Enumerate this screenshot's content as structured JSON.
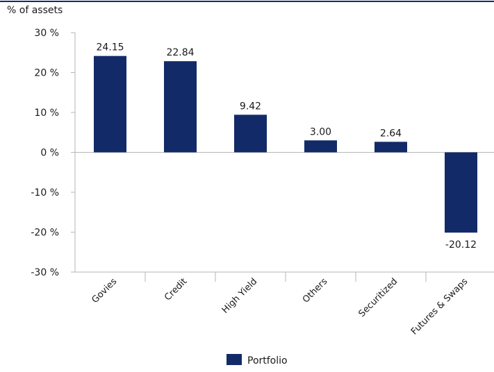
{
  "chart_data": {
    "type": "bar",
    "unit_label": "% of assets",
    "categories": [
      "Govies",
      "Credit",
      "High Yield",
      "Others",
      "Securitized",
      "Futures & Swaps"
    ],
    "series": [
      {
        "name": "Portfolio",
        "values": [
          24.15,
          22.84,
          9.42,
          3.0,
          2.64,
          -20.12
        ],
        "data_labels": [
          "24.15",
          "22.84",
          "9.42",
          "3.00",
          "2.64",
          "-20.12"
        ],
        "color": "#122b68"
      }
    ],
    "ylim": [
      -30,
      30
    ],
    "yticks": [
      -30,
      -20,
      -10,
      0,
      10,
      20,
      30
    ],
    "ytick_labels": [
      "-30 %",
      "-20 %",
      "-10 %",
      "0 %",
      "10 %",
      "20 %",
      "30 %"
    ],
    "grid": false,
    "legend_position": "bottom-center"
  },
  "colors": {
    "bar": "#122b68",
    "axis": "#b5b5b5",
    "top_rule": "#122b68",
    "text": "#1a1a1a"
  }
}
